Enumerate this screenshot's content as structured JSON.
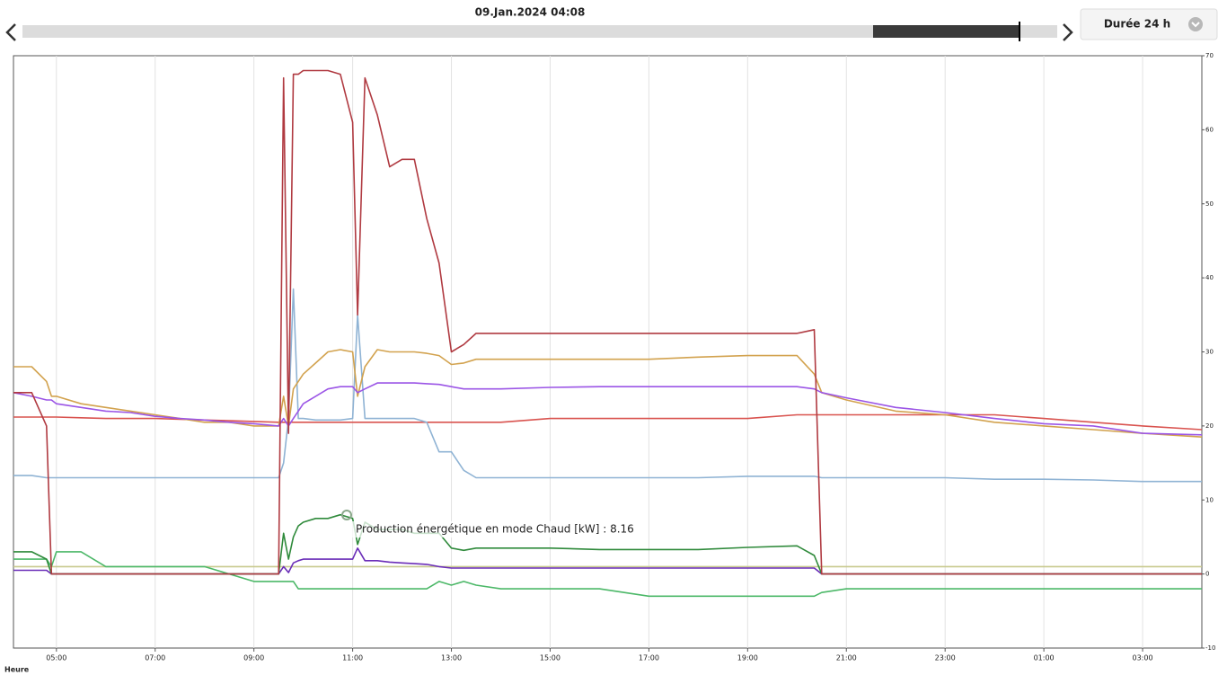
{
  "header": {
    "title": "09.Jan.2024 04:08",
    "duration": "Durée 24 h"
  },
  "tooltip": "Production énergétique en mode Chaud [kW] : 8.16",
  "chart_data": {
    "type": "line",
    "x_label": "Heure",
    "grid": "x",
    "xlim": [
      4.13,
      28.2
    ],
    "ylim": [
      -10,
      70
    ],
    "xticks": [
      {
        "value": 5,
        "label": "05:00"
      },
      {
        "value": 7,
        "label": "07:00"
      },
      {
        "value": 9,
        "label": "09:00"
      },
      {
        "value": 11,
        "label": "11:00"
      },
      {
        "value": 13,
        "label": "13:00"
      },
      {
        "value": 15,
        "label": "15:00"
      },
      {
        "value": 17,
        "label": "17:00"
      },
      {
        "value": 19,
        "label": "19:00"
      },
      {
        "value": 21,
        "label": "21:00"
      },
      {
        "value": 23,
        "label": "23:00"
      },
      {
        "value": 25,
        "label": "01:00"
      },
      {
        "value": 27,
        "label": "03:00"
      }
    ],
    "yticks": [
      -10,
      0,
      10,
      20,
      30,
      40,
      50,
      60,
      70
    ],
    "x": [
      4.13,
      4.5,
      4.8,
      4.9,
      5,
      5.5,
      6,
      6.5,
      7,
      7.5,
      8,
      8.5,
      9,
      9.5,
      9.6,
      9.7,
      9.8,
      9.9,
      10,
      10.25,
      10.5,
      10.75,
      11,
      11.1,
      11.25,
      11.5,
      11.75,
      12,
      12.25,
      12.5,
      12.75,
      13,
      13.25,
      13.5,
      14,
      15,
      16,
      17,
      18,
      19,
      20,
      20.35,
      20.5,
      21,
      22,
      23,
      24,
      25,
      26,
      27,
      28.2
    ],
    "series": [
      {
        "color": "#c8c98e",
        "values": [
          1,
          1,
          1,
          1,
          1,
          1,
          1,
          1,
          1,
          1,
          1,
          1,
          1,
          1,
          1,
          1,
          1,
          1,
          1,
          1,
          1,
          1,
          1,
          1,
          1,
          1,
          1,
          1,
          1,
          1,
          1,
          1,
          1,
          1,
          1,
          1,
          1,
          1,
          1,
          1,
          1,
          1,
          1,
          1,
          1,
          1,
          1,
          1,
          1,
          1,
          1
        ]
      },
      {
        "color": "#4cb868",
        "values": [
          2,
          2,
          2,
          1,
          3,
          3,
          1,
          1,
          1,
          1,
          1,
          0,
          -1,
          -1,
          -1,
          -1,
          -1,
          -2,
          -2,
          -2,
          -2,
          -2,
          -2,
          -2,
          -2,
          -2,
          -2,
          -2,
          -2,
          -2,
          -1,
          -1.5,
          -1,
          -1.5,
          -2,
          -2,
          -2,
          -3,
          -3,
          -3,
          -3,
          -3,
          -2.5,
          -2,
          -2,
          -2,
          -2,
          -2,
          -2,
          -2,
          -2
        ]
      },
      {
        "color": "#d9534f",
        "values": [
          21.2,
          21.2,
          21.2,
          21.2,
          21.2,
          21.1,
          21,
          21,
          21,
          20.9,
          20.8,
          20.7,
          20.6,
          20.5,
          20.5,
          20.5,
          20.5,
          20.5,
          20.5,
          20.5,
          20.5,
          20.5,
          20.5,
          20.5,
          20.5,
          20.5,
          20.5,
          20.5,
          20.5,
          20.5,
          20.5,
          20.5,
          20.5,
          20.5,
          20.5,
          21,
          21,
          21,
          21,
          21,
          21.5,
          21.5,
          21.5,
          21.5,
          21.5,
          21.5,
          21.5,
          21,
          20.5,
          20,
          19.5
        ]
      },
      {
        "color": "#8fb3d4",
        "values": [
          13.3,
          13.3,
          13,
          13,
          13,
          13,
          13,
          13,
          13,
          13,
          13,
          13,
          13,
          13,
          15,
          21,
          38.5,
          21,
          21,
          20.8,
          20.8,
          20.8,
          21,
          35,
          21,
          21,
          21,
          21,
          21,
          20.5,
          16.5,
          16.5,
          14,
          13,
          13,
          13,
          13,
          13,
          13,
          13.2,
          13.2,
          13.2,
          13,
          13,
          13,
          13,
          12.8,
          12.8,
          12.7,
          12.5,
          12.5
        ]
      },
      {
        "color": "#d2a24e",
        "values": [
          28,
          28,
          26,
          24,
          24,
          23,
          22.5,
          22,
          21.5,
          21,
          20.5,
          20.5,
          20,
          20,
          24,
          20,
          25,
          26,
          27,
          28.5,
          30,
          30.3,
          30,
          24,
          28,
          30.3,
          30,
          30,
          30,
          29.8,
          29.5,
          28.3,
          28.5,
          29,
          29,
          29,
          29,
          29,
          29.3,
          29.5,
          29.5,
          27,
          24.5,
          23.5,
          22,
          21.5,
          20.5,
          20,
          19.5,
          19,
          18.5
        ]
      },
      {
        "color": "#9b55e6",
        "values": [
          24.5,
          24,
          23.5,
          23.5,
          23,
          22.5,
          22,
          21.8,
          21.3,
          21,
          20.8,
          20.5,
          20.3,
          20,
          21,
          20,
          21,
          22,
          23,
          24,
          25,
          25.3,
          25.3,
          24.5,
          25,
          25.8,
          25.8,
          25.8,
          25.8,
          25.7,
          25.6,
          25.3,
          25,
          25,
          25,
          25.2,
          25.3,
          25.3,
          25.3,
          25.3,
          25.3,
          25,
          24.5,
          23.8,
          22.5,
          21.8,
          21,
          20.3,
          20,
          19,
          18.8
        ]
      },
      {
        "color": "#6a2db8",
        "values": [
          0.5,
          0.5,
          0.5,
          0,
          0,
          0,
          0,
          0,
          0,
          0,
          0,
          0,
          0,
          0,
          1,
          0.2,
          1.5,
          1.8,
          2,
          2,
          2,
          2,
          2,
          3.5,
          1.8,
          1.8,
          1.6,
          1.5,
          1.4,
          1.3,
          1,
          0.8,
          0.8,
          0.8,
          0.8,
          0.8,
          0.8,
          0.8,
          0.8,
          0.8,
          0.8,
          0.8,
          0,
          0,
          0,
          0,
          0,
          0,
          0,
          0,
          0
        ]
      },
      {
        "color": "#2f8a3b",
        "values": [
          3,
          3,
          2,
          0,
          0,
          0,
          0,
          0,
          0,
          0,
          0,
          0,
          0,
          0,
          5.5,
          2,
          5,
          6.5,
          7,
          7.5,
          7.5,
          8,
          7.5,
          4,
          7,
          6,
          6,
          6,
          5.5,
          5.5,
          5.5,
          3.5,
          3.2,
          3.5,
          3.5,
          3.5,
          3.3,
          3.3,
          3.3,
          3.6,
          3.8,
          2.5,
          0,
          0,
          0,
          0,
          0,
          0,
          0,
          0,
          0
        ]
      },
      {
        "color": "#b03a41",
        "values": [
          24.5,
          24.5,
          20,
          0,
          0,
          0,
          0,
          0,
          0,
          0,
          0,
          0,
          0,
          0,
          67,
          19,
          67.5,
          67.5,
          68,
          68,
          68,
          67.5,
          61,
          35,
          67,
          62,
          55,
          56,
          56,
          48,
          42,
          30,
          31,
          32.5,
          32.5,
          32.5,
          32.5,
          32.5,
          32.5,
          32.5,
          32.5,
          33,
          0,
          0,
          0,
          0,
          0,
          0,
          0,
          0,
          0
        ]
      }
    ]
  }
}
